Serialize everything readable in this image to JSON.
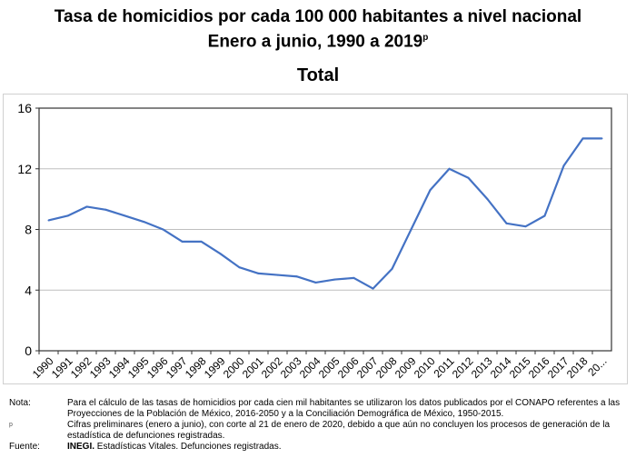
{
  "title_line1": "Tasa de homicidios por cada 100 000 habitantes a nivel nacional",
  "title_line2": "Enero a junio, 1990 a 2019",
  "title_superscript": "p",
  "chart_data": {
    "type": "line",
    "title": "Total",
    "categories": [
      "1990",
      "1991",
      "1992",
      "1993",
      "1994",
      "1995",
      "1996",
      "1997",
      "1998",
      "1999",
      "2000",
      "2001",
      "2002",
      "2003",
      "2004",
      "2005",
      "2006",
      "2007",
      "2008",
      "2009",
      "2010",
      "2011",
      "2012",
      "2013",
      "2014",
      "2015",
      "2016",
      "2017",
      "2018",
      "20..."
    ],
    "series": [
      {
        "name": "Total",
        "values": [
          8.6,
          8.9,
          9.5,
          9.3,
          8.9,
          8.5,
          8.0,
          7.2,
          7.2,
          6.4,
          5.5,
          5.1,
          5.0,
          4.9,
          4.5,
          4.7,
          4.8,
          4.1,
          5.4,
          8.0,
          10.6,
          12.0,
          11.4,
          10.0,
          8.4,
          8.2,
          8.9,
          12.2,
          14.0,
          14.0
        ]
      }
    ],
    "ylim": [
      0,
      16
    ],
    "yticks": [
      "0",
      "4",
      "8",
      "12",
      "16"
    ],
    "grid": true,
    "line_color": "#4472c4"
  },
  "notes": {
    "nota_label": "Nota:",
    "nota_text": "Para el cálculo de las tasas de homicidios por cada cien mil habitantes se utilizaron los datos publicados por el CONAPO referentes a las Proyecciones de la Población de México, 2016-2050 y a la Conciliación Demográfica de México, 1950-2015.",
    "p_label": "p",
    "p_text": "Cifras preliminares (enero a junio), con corte al 21 de enero de 2020, debido a que aún no concluyen los procesos de generación de la estadística de defunciones registradas.",
    "fuente_label": "Fuente:",
    "fuente_bold": "INEGI.",
    "fuente_text": " Estadísticas Vitales. Defunciones registradas."
  }
}
